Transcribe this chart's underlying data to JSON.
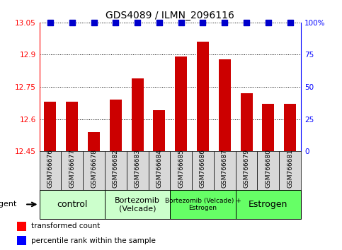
{
  "title": "GDS4089 / ILMN_2096116",
  "samples": [
    "GSM766676",
    "GSM766677",
    "GSM766678",
    "GSM766682",
    "GSM766683",
    "GSM766684",
    "GSM766685",
    "GSM766686",
    "GSM766687",
    "GSM766679",
    "GSM766680",
    "GSM766681"
  ],
  "red_values": [
    12.68,
    12.68,
    12.54,
    12.69,
    12.79,
    12.64,
    12.89,
    12.96,
    12.88,
    12.72,
    12.67,
    12.67
  ],
  "blue_values": [
    100,
    100,
    100,
    100,
    100,
    100,
    100,
    100,
    100,
    100,
    100,
    100
  ],
  "ymin": 12.45,
  "ymax": 13.05,
  "yticks": [
    12.45,
    12.6,
    12.75,
    12.9,
    13.05
  ],
  "y2ticks": [
    0,
    25,
    50,
    75,
    100
  ],
  "y2labels": [
    "0",
    "25",
    "50",
    "75",
    "100%"
  ],
  "bar_color": "#cc0000",
  "dot_color": "#0000cc",
  "group_configs": [
    {
      "start": 0,
      "end": 2,
      "label": "control",
      "color": "#ccffcc",
      "fontsize": 9
    },
    {
      "start": 3,
      "end": 5,
      "label": "Bortezomib\n(Velcade)",
      "color": "#ccffcc",
      "fontsize": 8
    },
    {
      "start": 6,
      "end": 8,
      "label": "Bortezomib (Velcade) +\nEstrogen",
      "color": "#66ff66",
      "fontsize": 6.5
    },
    {
      "start": 9,
      "end": 11,
      "label": "Estrogen",
      "color": "#66ff66",
      "fontsize": 9
    }
  ],
  "bar_width": 0.55,
  "dot_size": 28,
  "agent_label": "agent"
}
